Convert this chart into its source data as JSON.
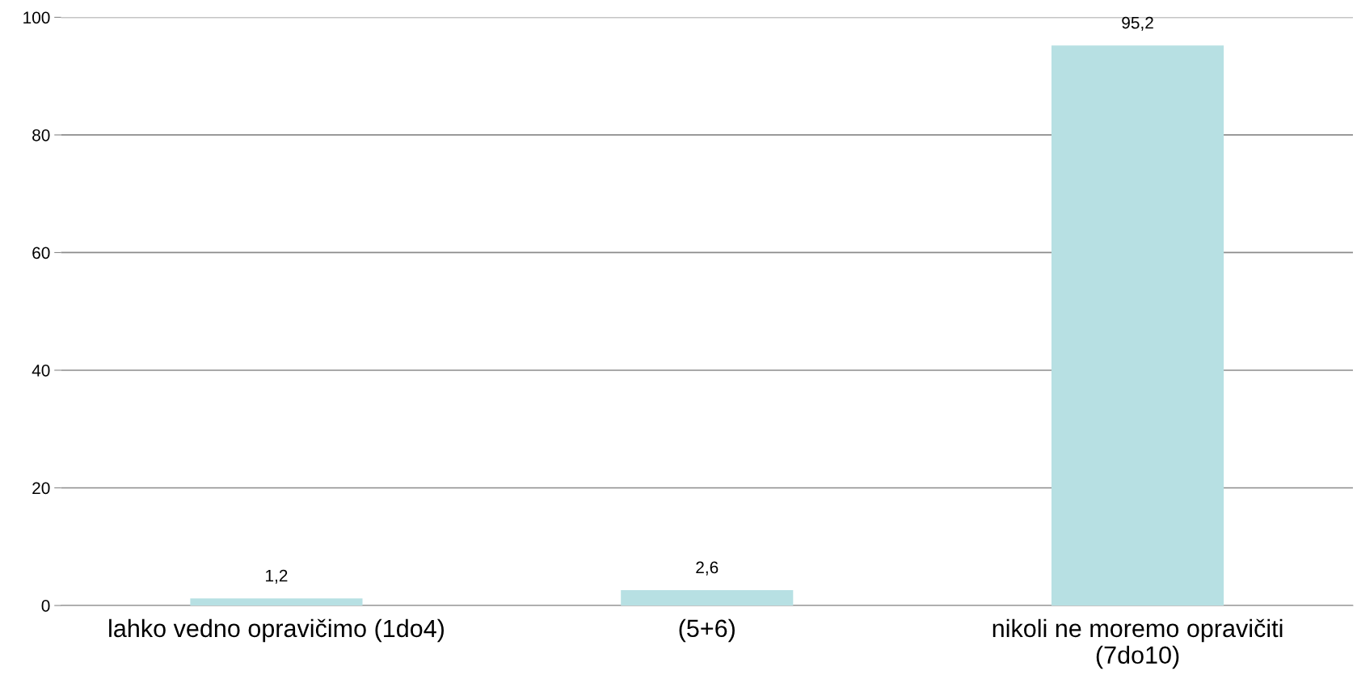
{
  "chart_data": {
    "type": "bar",
    "categories": [
      "lahko vedno opravičimo (1do4)",
      "(5+6)",
      "nikoli ne moremo opravičiti\n(7do10)"
    ],
    "values": [
      1.2,
      2.6,
      95.2
    ],
    "value_labels": [
      "1,2",
      "2,6",
      "95,2"
    ],
    "color": "#b7e0e3",
    "ylim": [
      0,
      100
    ],
    "yticks": [
      0,
      20,
      40,
      60,
      80,
      100
    ],
    "grid": "y",
    "legend": false
  }
}
